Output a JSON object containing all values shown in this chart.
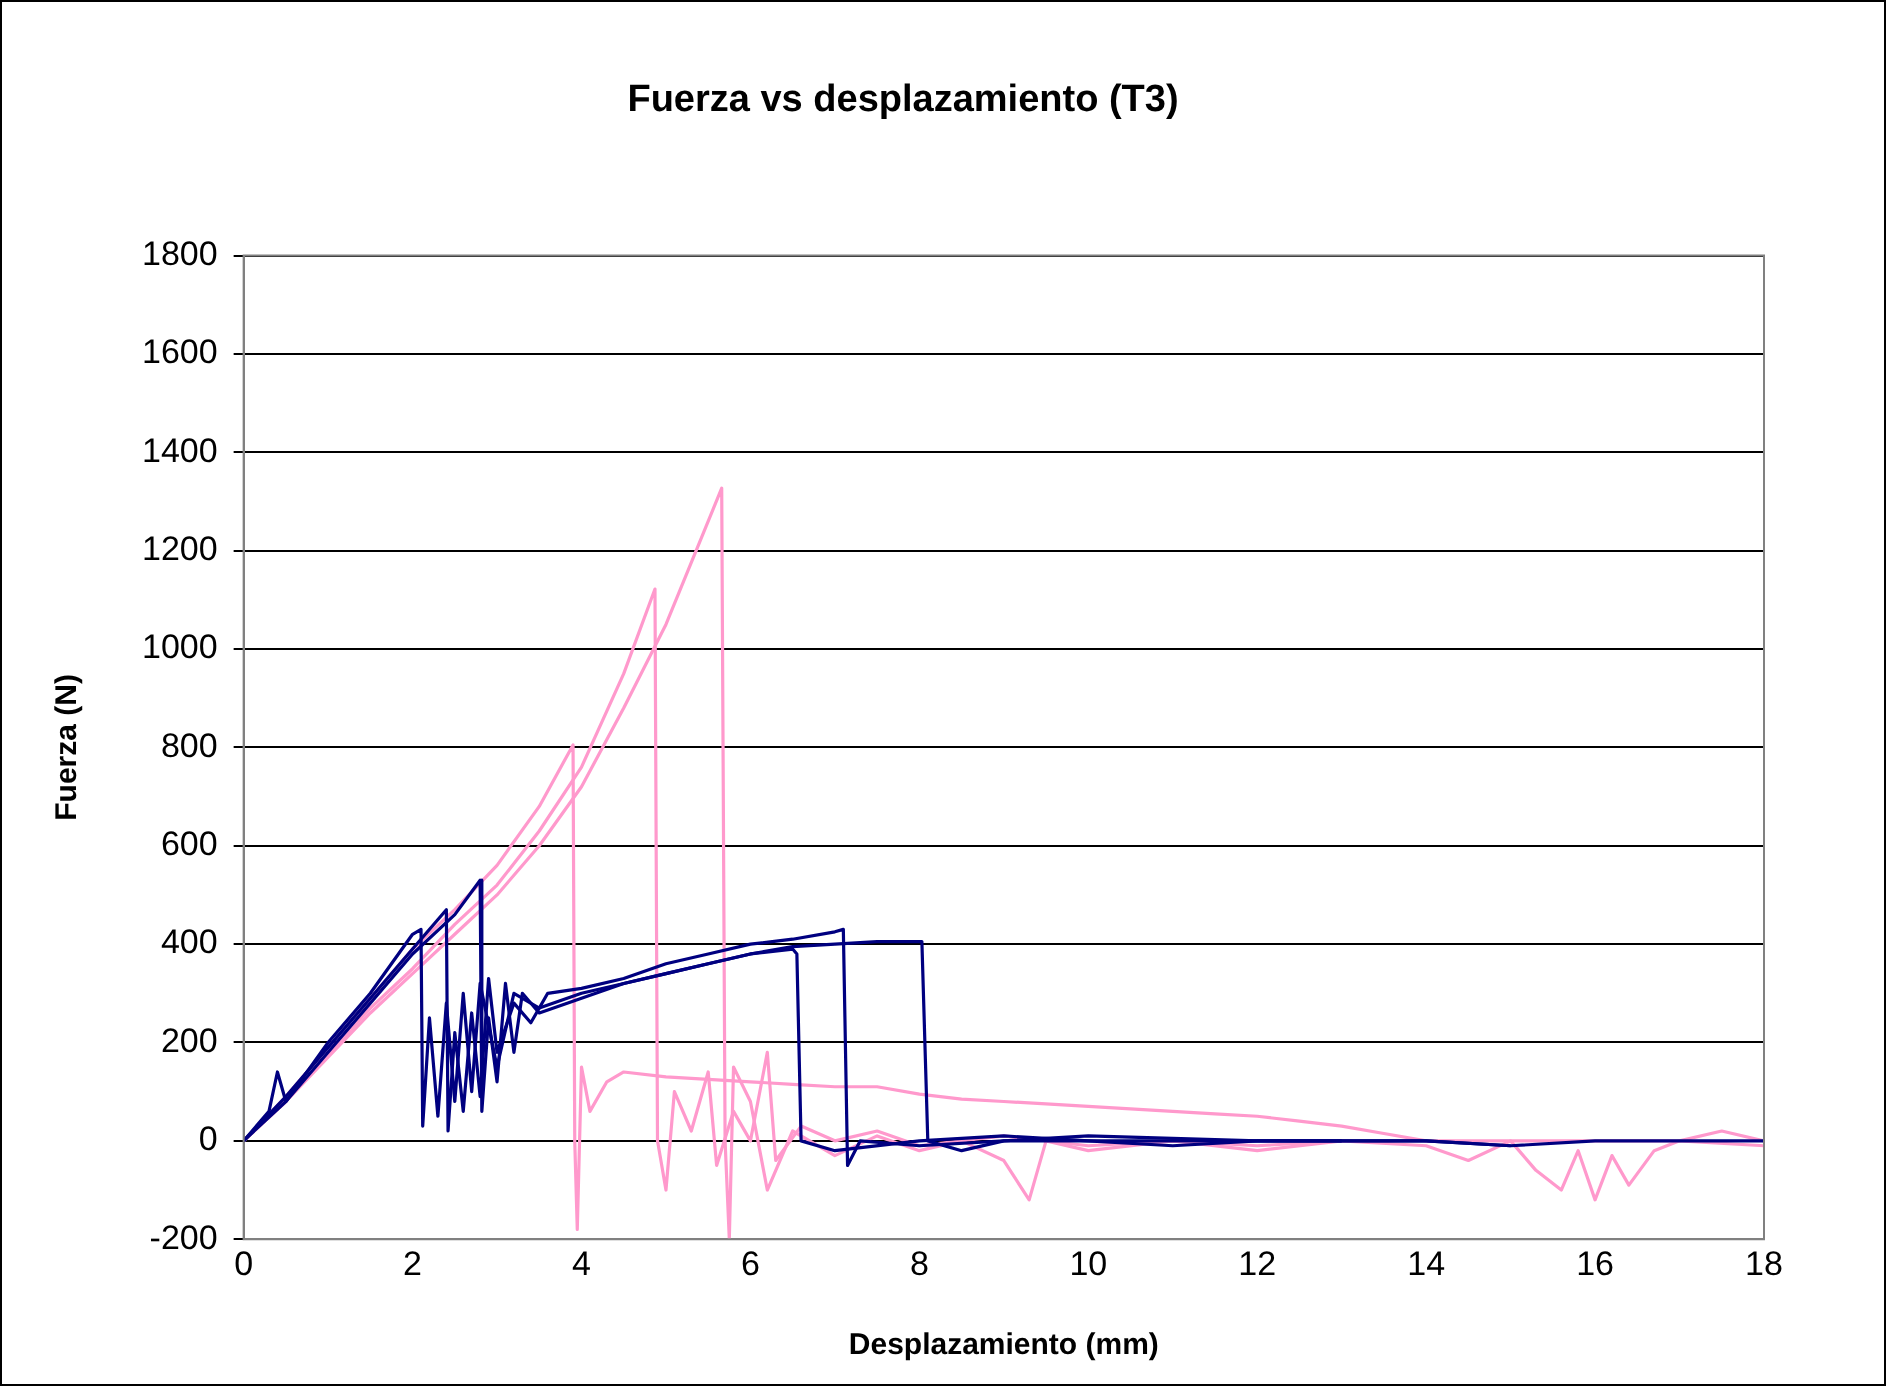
{
  "chart_data": {
    "type": "line",
    "title": "Fuerza vs desplazamiento (T3)",
    "xlabel": "Desplazamiento (mm)",
    "ylabel": "Fuerza (N)",
    "xlim": [
      0,
      18
    ],
    "xticks": [
      0,
      2,
      4,
      6,
      8,
      10,
      12,
      14,
      16,
      18
    ],
    "ylim": [
      -200,
      1800
    ],
    "yticks": [
      -200,
      0,
      200,
      400,
      600,
      800,
      1000,
      1200,
      1400,
      1600,
      1800
    ],
    "grid": "y",
    "legend": false,
    "marker": "none",
    "line_style": "solid",
    "series": [
      {
        "color": "#000080",
        "x": [
          0,
          0.3,
          0.4,
          0.5,
          1,
          1.5,
          2,
          2.1,
          2.12,
          2.2,
          2.3,
          2.4,
          2.5,
          2.6,
          2.7,
          2.8,
          3,
          3.2,
          3.5,
          4,
          4.5,
          5,
          5.5,
          6,
          6.5,
          6.55,
          6.6,
          7,
          8,
          9,
          10,
          11,
          12,
          13
        ],
        "values": [
          0,
          60,
          140,
          80,
          200,
          300,
          420,
          430,
          30,
          250,
          50,
          280,
          80,
          300,
          100,
          320,
          150,
          300,
          270,
          300,
          320,
          340,
          360,
          380,
          390,
          380,
          0,
          -20,
          0,
          10,
          0,
          0,
          0,
          0
        ]
      },
      {
        "color": "#000080",
        "x": [
          0,
          0.5,
          1,
          1.5,
          2,
          2.4,
          2.42,
          2.5,
          2.6,
          2.7,
          2.8,
          2.9,
          3,
          3.2,
          3.4,
          3.6,
          4,
          4.5,
          5,
          5.5,
          6,
          6.5,
          7,
          7.1,
          7.15,
          7.3,
          8,
          9,
          10,
          12,
          14,
          15,
          16,
          17,
          18
        ],
        "values": [
          0,
          90,
          190,
          290,
          390,
          470,
          20,
          220,
          60,
          260,
          90,
          330,
          180,
          280,
          240,
          300,
          310,
          330,
          360,
          380,
          400,
          410,
          425,
          430,
          -50,
          0,
          -10,
          0,
          10,
          0,
          0,
          -10,
          0,
          0,
          0
        ]
      },
      {
        "color": "#000080",
        "x": [
          0,
          0.5,
          1,
          1.5,
          2,
          2.5,
          2.8,
          2.82,
          2.9,
          3,
          3.1,
          3.2,
          3.3,
          3.5,
          4,
          4.5,
          5,
          5.5,
          6,
          6.5,
          7,
          7.5,
          8,
          8.03,
          8.1,
          8.5,
          9,
          10,
          11,
          12,
          13,
          14,
          15
        ],
        "values": [
          0,
          80,
          180,
          280,
          380,
          460,
          530,
          60,
          250,
          120,
          320,
          180,
          300,
          260,
          290,
          320,
          340,
          360,
          380,
          395,
          400,
          405,
          405,
          405,
          0,
          -20,
          0,
          0,
          -10,
          0,
          0,
          0,
          -10
        ]
      },
      {
        "color": "#ff99cc",
        "x": [
          0,
          0.5,
          1,
          1.5,
          2,
          2.5,
          3,
          3.5,
          3.9,
          3.92,
          3.95,
          4,
          4.1,
          4.3,
          4.5,
          5,
          5.5,
          6,
          6.5,
          7,
          7.5,
          8,
          8.5,
          9,
          9.5,
          10,
          10.5,
          11,
          11.5,
          12,
          12.5,
          13,
          13.5,
          14,
          15,
          16,
          17,
          18
        ],
        "values": [
          0,
          90,
          190,
          290,
          390,
          470,
          560,
          680,
          805,
          0,
          -180,
          150,
          60,
          120,
          140,
          130,
          125,
          120,
          115,
          110,
          110,
          95,
          85,
          80,
          75,
          70,
          65,
          60,
          55,
          50,
          40,
          30,
          15,
          0,
          0,
          0,
          0,
          -10
        ]
      },
      {
        "color": "#ff99cc",
        "x": [
          0,
          0.5,
          1,
          1.5,
          2,
          2.5,
          3,
          3.5,
          4,
          4.5,
          4.87,
          4.9,
          5,
          5.1,
          5.3,
          5.5,
          5.6,
          5.8,
          6,
          6.2,
          6.3,
          6.6,
          7,
          7.5,
          8,
          9,
          10,
          11,
          12,
          13
        ],
        "values": [
          0,
          80,
          175,
          270,
          350,
          440,
          520,
          630,
          760,
          950,
          1122,
          0,
          -100,
          100,
          20,
          140,
          -50,
          60,
          0,
          180,
          -40,
          30,
          0,
          20,
          -10,
          10,
          -10,
          0,
          -10,
          0
        ]
      },
      {
        "color": "#ff99cc",
        "x": [
          0,
          0.5,
          1,
          1.5,
          2,
          2.5,
          3,
          3.5,
          4,
          4.5,
          5,
          5.66,
          5.7,
          5.75,
          5.8,
          6,
          6.2,
          6.5,
          7,
          7.5,
          8,
          8.5,
          9,
          9.3,
          9.5,
          10,
          11,
          12,
          13,
          14,
          14.5,
          15,
          15.3,
          15.6,
          15.8,
          16,
          16.2,
          16.4,
          16.7,
          17,
          17.5,
          18
        ],
        "values": [
          0,
          80,
          170,
          260,
          340,
          420,
          500,
          600,
          720,
          880,
          1050,
          1327,
          0,
          -200,
          150,
          80,
          -100,
          20,
          -30,
          10,
          -20,
          0,
          -40,
          -120,
          0,
          -20,
          0,
          -20,
          0,
          -10,
          -40,
          0,
          -60,
          -100,
          -20,
          -120,
          -30,
          -90,
          -20,
          0,
          20,
          0
        ]
      }
    ]
  }
}
